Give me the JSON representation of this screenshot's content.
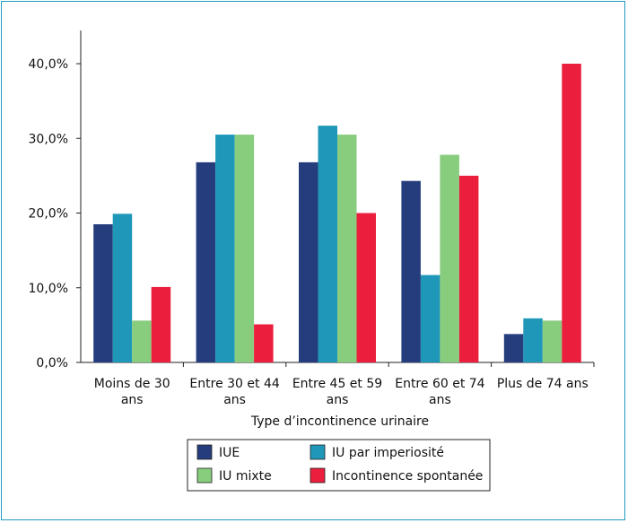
{
  "chart_data": {
    "type": "bar",
    "xlabel": "Type d’incontinence urinaire",
    "ylabel": "",
    "ylim": [
      0,
      45
    ],
    "yticks": [
      0,
      10,
      20,
      30,
      40
    ],
    "ytick_labels": [
      "0,0%",
      "10,0%",
      "20,0%",
      "30,0%",
      "40,0%"
    ],
    "categories": [
      [
        "Moins de 30",
        "ans"
      ],
      [
        "Entre 30 et 44",
        "ans"
      ],
      [
        "Entre 45 et 59",
        "ans"
      ],
      [
        "Entre 60 et 74",
        "ans"
      ],
      [
        "Plus de 74 ans"
      ]
    ],
    "series": [
      {
        "name": "IUE",
        "color": "#253d7c",
        "values": [
          18.5,
          26.8,
          26.8,
          24.3,
          3.8
        ]
      },
      {
        "name": "IU par imperiosité",
        "color": "#1e97b8",
        "values": [
          19.9,
          30.5,
          31.7,
          11.7,
          5.9
        ]
      },
      {
        "name": "IU mixte",
        "color": "#88cc7e",
        "values": [
          5.6,
          30.5,
          30.5,
          27.8,
          5.6
        ]
      },
      {
        "name": "Incontinence spontanée",
        "color": "#ec1e3e",
        "values": [
          10.1,
          5.1,
          20.0,
          25.0,
          40.0
        ]
      }
    ],
    "legend_placement": "bottom",
    "grid": false
  }
}
